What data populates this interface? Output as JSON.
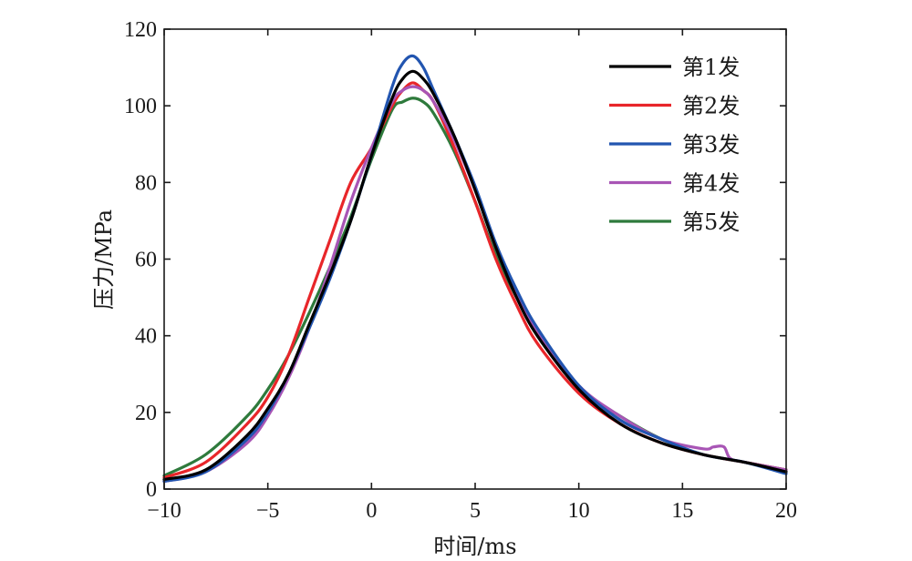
{
  "chart_data": {
    "type": "line",
    "title": "",
    "xlabel": "时间/ms",
    "ylabel": "压力/MPa",
    "xlim": [
      -10,
      20
    ],
    "ylim": [
      0,
      120
    ],
    "xticks": [
      -10,
      -5,
      0,
      5,
      10,
      15,
      20
    ],
    "yticks": [
      0,
      20,
      40,
      60,
      80,
      100,
      120
    ],
    "xtick_labels": [
      "−10",
      "−5",
      "0",
      "5",
      "10",
      "15",
      "20"
    ],
    "ytick_labels": [
      "0",
      "20",
      "40",
      "60",
      "80",
      "100",
      "120"
    ],
    "grid": false,
    "legend_position": "top-right",
    "series": [
      {
        "name": "第1发",
        "color": "#000000",
        "x": [
          -10,
          -8,
          -6,
          -5,
          -4,
          -3,
          -2,
          -1,
          0,
          1,
          1.5,
          2,
          2.5,
          3,
          4,
          5,
          6,
          7,
          8,
          10,
          12,
          14,
          16,
          18,
          20
        ],
        "y": [
          2.5,
          5,
          14,
          21,
          30,
          43,
          56,
          70,
          87,
          102,
          107,
          109,
          107,
          103,
          92,
          78,
          63,
          50,
          40,
          26,
          17,
          12,
          9,
          7,
          4.5
        ]
      },
      {
        "name": "第2发",
        "color": "#e8262a",
        "x": [
          -10,
          -8,
          -6,
          -5,
          -4,
          -3,
          -2,
          -1,
          0,
          1,
          1.5,
          2,
          2.5,
          3,
          4,
          5,
          6,
          7,
          8,
          10,
          12,
          14,
          16,
          18,
          20
        ],
        "y": [
          3,
          7,
          17,
          24,
          35,
          50,
          65,
          80,
          89,
          100,
          104,
          106,
          104,
          101,
          89,
          75,
          60,
          48,
          38,
          25,
          17,
          12,
          9,
          7,
          5
        ]
      },
      {
        "name": "第3发",
        "color": "#2255b0",
        "x": [
          -10,
          -8,
          -6,
          -5,
          -4,
          -3,
          -2,
          -1,
          0,
          1,
          1.5,
          2,
          2.5,
          3,
          4,
          5,
          6,
          7,
          8,
          10,
          12,
          14,
          16,
          18,
          20
        ],
        "y": [
          2,
          4.5,
          13,
          20,
          30,
          42,
          55,
          70,
          87,
          105,
          111,
          113,
          110,
          104,
          92,
          79,
          64,
          52,
          42,
          27,
          18,
          13,
          9,
          7,
          4
        ]
      },
      {
        "name": "第4发",
        "color": "#a855b5",
        "x": [
          -10,
          -8,
          -6,
          -5,
          -4,
          -3,
          -2,
          -1,
          0,
          1,
          1.5,
          2,
          2.5,
          3,
          4,
          5,
          6,
          7,
          8,
          10,
          12,
          14,
          16,
          16.5,
          17,
          17.3,
          18,
          20
        ],
        "y": [
          2,
          4.5,
          12,
          19,
          29,
          42,
          58,
          75,
          89,
          101,
          104,
          105,
          104,
          101,
          91,
          78,
          63,
          51,
          41,
          27,
          19,
          13,
          10.5,
          11,
          11,
          8,
          7,
          5
        ]
      },
      {
        "name": "第5发",
        "color": "#2e7a3c",
        "x": [
          -10,
          -8,
          -6,
          -5,
          -4,
          -3,
          -2,
          -1,
          0,
          1,
          1.5,
          2,
          2.5,
          3,
          4,
          5,
          6,
          7,
          8,
          10,
          12,
          14,
          16,
          18,
          20
        ],
        "y": [
          3.5,
          9,
          19,
          26,
          35,
          46,
          58,
          71,
          86,
          99,
          101,
          102,
          101,
          98,
          88,
          75,
          61,
          50,
          40,
          26.5,
          19,
          13,
          9,
          7,
          5
        ]
      }
    ]
  }
}
